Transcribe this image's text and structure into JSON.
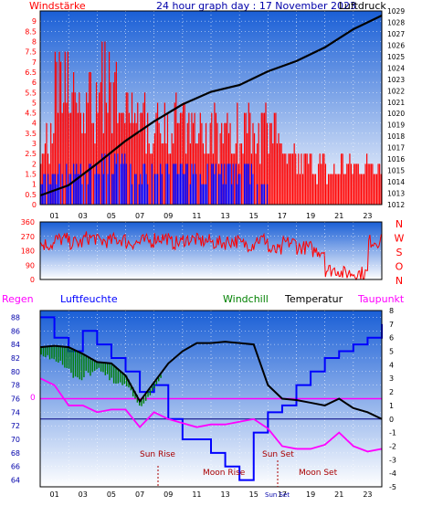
{
  "header": {
    "left_label": "Windstärke",
    "title": "24 hour graph day : 17 November 2023",
    "right_label": "Luftdruck"
  },
  "hour_labels": [
    "01",
    "03",
    "05",
    "07",
    "09",
    "11",
    "13",
    "15",
    "17",
    "19",
    "21",
    "23"
  ],
  "direction_labels": [
    "N",
    "W",
    "S",
    "O",
    "N"
  ],
  "lower_header": {
    "regen": "Regen",
    "luftfeuchte": "Luftfeuchte",
    "windchill": "Windchill",
    "temperatur": "Temperatur",
    "taupunkt": "Taupunkt"
  },
  "events": {
    "sun_rise": "Sun Rise",
    "moon_rise": "Moon Rise",
    "sun_set": "Sun Set",
    "moon_set": "Moon Set",
    "sun_set_axis": "Sun Set"
  },
  "colors": {
    "wind": "#ff0000",
    "gust_bar": "#0000ff",
    "pressure": "#000000",
    "humidity": "#0000ff",
    "windchill": "#008000",
    "temperature": "#000000",
    "dewpoint": "#ff00ff",
    "sky_top": "#1a5fd6",
    "sky_bottom": "#ffffff"
  },
  "chart_data": [
    {
      "type": "bar",
      "title": "24 hour graph day : 17 November 2023",
      "ylabel_left": "Windstärke",
      "ylabel_right": "Luftdruck",
      "ylim_left": [
        0,
        9.5
      ],
      "ylim_right": [
        1012,
        1029
      ],
      "left_ticks": [
        "0",
        "0.5",
        "1",
        "1.5",
        "2",
        "2.5",
        "3",
        "3.5",
        "4",
        "4.5",
        "5",
        "5.5",
        "6",
        "6.5",
        "7",
        "7.5",
        "8",
        "8.5",
        "9"
      ],
      "right_ticks": [
        "1012",
        "1013",
        "1014",
        "1015",
        "1016",
        "1017",
        "1018",
        "1019",
        "1020",
        "1021",
        "1022",
        "1023",
        "1024",
        "1025",
        "1026",
        "1027",
        "1028",
        "1029"
      ],
      "x_hours": [
        0,
        2,
        4,
        6,
        8,
        10,
        12,
        14,
        16,
        18,
        20,
        22,
        24
      ],
      "pressure": [
        1012.8,
        1013.7,
        1015.6,
        1017.6,
        1019.3,
        1020.8,
        1021.9,
        1022.5,
        1023.7,
        1024.6,
        1025.8,
        1027.4,
        1028.6
      ],
      "wind_level_by_hour": [
        3,
        5.5,
        5,
        5,
        6,
        5,
        4,
        4,
        4.5,
        4,
        3.5,
        3.5,
        3.5,
        3.5,
        4,
        3.5,
        3.5,
        2,
        2,
        2,
        1.5,
        2,
        2,
        2
      ],
      "gust_level_by_hour": [
        1.5,
        2,
        2,
        2,
        2.5,
        2.5,
        2,
        2,
        2,
        2,
        2,
        2,
        2,
        2,
        2,
        1.5,
        0,
        0,
        0,
        0,
        0,
        0,
        0,
        0
      ]
    },
    {
      "type": "line",
      "ylim": [
        0,
        360
      ],
      "y_ticks": [
        "0",
        "90",
        "180",
        "270",
        "360"
      ],
      "wind_direction_by_hour": [
        220,
        250,
        230,
        260,
        240,
        250,
        230,
        240,
        260,
        230,
        250,
        240,
        230,
        240,
        220,
        250,
        180,
        230,
        200,
        180,
        60,
        40,
        40,
        240
      ]
    },
    {
      "type": "line",
      "ylim_left": [
        63,
        89
      ],
      "ylim_right": [
        -5,
        8
      ],
      "left_ticks": [
        "64",
        "66",
        "68",
        "70",
        "72",
        "74",
        "76",
        "78",
        "80",
        "82",
        "84",
        "86",
        "88"
      ],
      "right_ticks": [
        "-5",
        "-4",
        "-3",
        "-2",
        "-1",
        "0",
        "1",
        "2",
        "3",
        "4",
        "5",
        "6",
        "7",
        "8"
      ],
      "x_hours": [
        0,
        1,
        2,
        3,
        4,
        5,
        6,
        7,
        8,
        9,
        10,
        11,
        12,
        13,
        14,
        15,
        16,
        17,
        18,
        19,
        20,
        21,
        22,
        23,
        24
      ],
      "humidity": [
        88,
        85,
        83,
        86,
        84,
        82,
        80,
        77,
        78,
        73,
        70,
        70,
        68,
        66,
        64,
        71,
        74,
        75,
        78,
        80,
        82,
        83,
        84,
        85,
        87
      ],
      "temperature": [
        5.3,
        5.4,
        5.3,
        4.8,
        4.2,
        4.1,
        3.2,
        1.3,
        2.7,
        4.1,
        5.0,
        5.6,
        5.6,
        5.7,
        5.6,
        5.5,
        2.5,
        1.5,
        1.4,
        1.2,
        1.0,
        1.5,
        0.8,
        0.5,
        0.0
      ],
      "windchill": [
        4.8,
        4.7,
        3.8,
        3.5,
        3.9,
        3.0,
        2.6,
        1.0,
        2.4,
        4.0,
        5.0,
        5.6,
        5.6,
        5.7,
        5.6,
        5.5,
        2.5,
        1.5,
        1.4,
        1.2,
        1.0,
        1.5,
        0.8,
        0.5,
        0.0
      ],
      "dewpoint": [
        3.0,
        2.5,
        1.0,
        1.0,
        0.5,
        0.7,
        0.7,
        -0.6,
        0.5,
        0.0,
        -0.3,
        -0.6,
        -0.4,
        -0.4,
        -0.2,
        0.0,
        -0.7,
        -2.0,
        -2.2,
        -2.2,
        -1.9,
        -1.0,
        -2.0,
        -2.4,
        -2.2
      ],
      "rain_zero_label": "0",
      "reference_zero_temp": 0
    }
  ]
}
